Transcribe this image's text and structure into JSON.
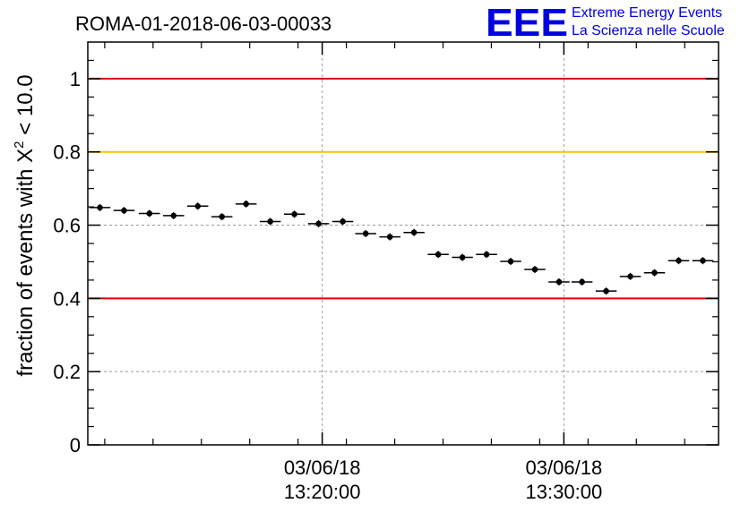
{
  "chart_data": {
    "type": "scatter",
    "title": "ROMA-01-2018-06-03-00033",
    "ylabel_main": "fraction of events with X",
    "ylabel_sup": "2",
    "ylabel_tail": " < 10.0",
    "xlabel": "",
    "ylim": [
      0,
      1.1
    ],
    "yticks": [
      {
        "v": 0,
        "label": "0"
      },
      {
        "v": 0.2,
        "label": "0.2"
      },
      {
        "v": 0.4,
        "label": "0.4"
      },
      {
        "v": 0.6,
        "label": "0.6"
      },
      {
        "v": 0.8,
        "label": "0.8"
      },
      {
        "v": 1,
        "label": "1"
      }
    ],
    "xlim_minutes": [
      10.3,
      36.4
    ],
    "xticks": [
      {
        "t": 20,
        "date": "03/06/18",
        "time": "13:20:00"
      },
      {
        "t": 30,
        "date": "03/06/18",
        "time": "13:30:00"
      }
    ],
    "grid": true,
    "bin_width_minutes": 0.87,
    "points": [
      {
        "t": 10.8,
        "y": 0.648
      },
      {
        "t": 11.8,
        "y": 0.64
      },
      {
        "t": 12.85,
        "y": 0.632
      },
      {
        "t": 13.85,
        "y": 0.626
      },
      {
        "t": 14.85,
        "y": 0.652
      },
      {
        "t": 15.85,
        "y": 0.623
      },
      {
        "t": 16.85,
        "y": 0.658
      },
      {
        "t": 17.85,
        "y": 0.61
      },
      {
        "t": 18.85,
        "y": 0.63
      },
      {
        "t": 19.85,
        "y": 0.604
      },
      {
        "t": 20.85,
        "y": 0.61
      },
      {
        "t": 21.8,
        "y": 0.577
      },
      {
        "t": 22.8,
        "y": 0.568
      },
      {
        "t": 23.8,
        "y": 0.58
      },
      {
        "t": 24.8,
        "y": 0.52
      },
      {
        "t": 25.8,
        "y": 0.512
      },
      {
        "t": 26.8,
        "y": 0.52
      },
      {
        "t": 27.8,
        "y": 0.501
      },
      {
        "t": 28.8,
        "y": 0.479
      },
      {
        "t": 29.8,
        "y": 0.445
      },
      {
        "t": 30.75,
        "y": 0.445
      },
      {
        "t": 31.75,
        "y": 0.42
      },
      {
        "t": 32.75,
        "y": 0.46
      },
      {
        "t": 33.75,
        "y": 0.47
      },
      {
        "t": 34.75,
        "y": 0.503
      },
      {
        "t": 35.75,
        "y": 0.503
      }
    ],
    "reference_lines": [
      {
        "y": 1.0,
        "color": "#e00000"
      },
      {
        "y": 0.8,
        "color": "#ffc000"
      },
      {
        "y": 0.4,
        "color": "#e00000"
      }
    ]
  },
  "logo": {
    "mark": "EEE",
    "line1": "Extreme Energy Events",
    "line2": "La Scienza nelle Scuole",
    "color": "#0000e0"
  }
}
